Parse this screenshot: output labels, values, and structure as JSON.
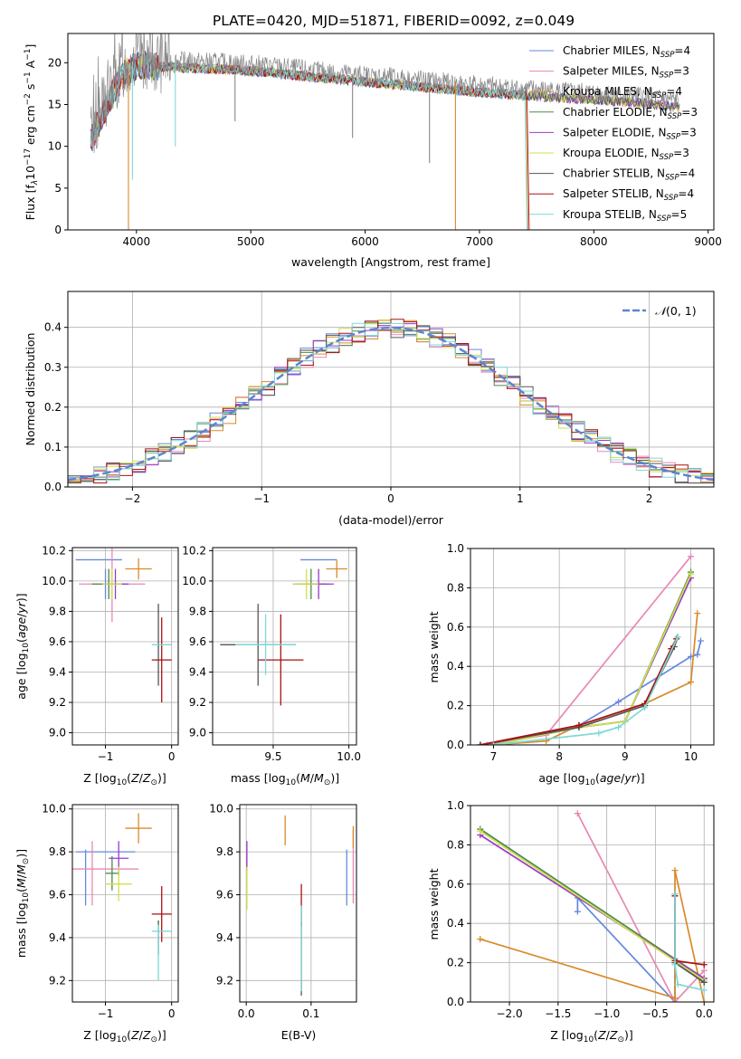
{
  "figure_title": "PLATE=0420, MJD=51871, FIBERID=0092, z=0.049",
  "colors": {
    "Chabrier MILES": "#6688dd",
    "Salpeter MILES": "#e987b6",
    "Kroupa MILES": "#d98a2a",
    "Chabrier ELODIE": "#4a8a4a",
    "Salpeter ELODIE": "#9a3bc9",
    "Kroupa ELODIE": "#cfe04a",
    "Chabrier STELIB": "#555555",
    "Salpeter STELIB": "#aa1111",
    "Kroupa STELIB": "#7fd8d8",
    "normal": "#5a86d0",
    "spectrum": "#888888",
    "orange": "#e07b26"
  },
  "chart_data": [
    {
      "type": "line",
      "id": "spectrum",
      "title": "PLATE=0420, MJD=51871, FIBERID=0092, z=0.049",
      "xlabel": "wavelength [Angstrom, rest frame]",
      "ylabel_parts": [
        "Flux [f",
        "λ",
        "10",
        "−17",
        " erg cm",
        "−2",
        " s",
        "−1",
        " A",
        "−1",
        "]"
      ],
      "xlim": [
        3400,
        9050
      ],
      "ylim": [
        0,
        23.5
      ],
      "xticks": [
        4000,
        5000,
        6000,
        7000,
        8000,
        9000
      ],
      "yticks": [
        0,
        5,
        10,
        15,
        20
      ],
      "x": [
        3600,
        3700,
        3800,
        3900,
        4000,
        4100,
        4200,
        4400,
        4600,
        4800,
        5000,
        5200,
        5400,
        5600,
        5800,
        6000,
        6200,
        6400,
        6600,
        6800,
        7000,
        7200,
        7400,
        7600,
        7800,
        8000,
        8200,
        8400,
        8600,
        8750
      ],
      "y": [
        11.5,
        14.5,
        17.5,
        19.5,
        20.5,
        20.5,
        20.3,
        20.2,
        20.1,
        20.0,
        19.8,
        19.6,
        19.3,
        19.0,
        18.8,
        18.5,
        18.3,
        18.0,
        17.8,
        17.5,
        17.3,
        17.1,
        16.9,
        16.7,
        16.5,
        16.4,
        16.2,
        16.0,
        15.7,
        15.4
      ],
      "dips": [
        {
          "x": 3930,
          "y": 0,
          "color": "Kroupa MILES"
        },
        {
          "x": 6790,
          "y": 0,
          "color": "Kroupa MILES"
        },
        {
          "x": 3965,
          "y": 6,
          "color": "Kroupa STELIB"
        },
        {
          "x": 4340,
          "y": 10,
          "color": "Kroupa STELIB"
        },
        {
          "x": 4862,
          "y": 13,
          "color": "spectrum"
        },
        {
          "x": 5890,
          "y": 11,
          "color": "spectrum"
        },
        {
          "x": 6563,
          "y": 8,
          "color": "spectrum"
        }
      ],
      "model_end": [
        {
          "name": "Kroupa STELIB",
          "x": 7400
        },
        {
          "name": "Salpeter STELIB",
          "x": 7420
        },
        {
          "name": "Kroupa MILES",
          "x": 7410
        }
      ],
      "legend": [
        {
          "name": "Chabrier MILES",
          "sub": "SSP",
          "n": "4"
        },
        {
          "name": "Salpeter MILES",
          "sub": "SSP",
          "n": "3"
        },
        {
          "name": "Kroupa MILES",
          "sub": "SSP",
          "n": "4"
        },
        {
          "name": "Chabrier ELODIE",
          "sub": "SSP",
          "n": "3"
        },
        {
          "name": "Salpeter ELODIE",
          "sub": "SSP",
          "n": "3"
        },
        {
          "name": "Kroupa ELODIE",
          "sub": "SSP",
          "n": "3"
        },
        {
          "name": "Chabrier STELIB",
          "sub": "SSP",
          "n": "4"
        },
        {
          "name": "Salpeter STELIB",
          "sub": "SSP",
          "n": "4"
        },
        {
          "name": "Kroupa STELIB",
          "sub": "SSP",
          "n": "5"
        }
      ],
      "legend_prefix": "N",
      "legend_sep": "=",
      "legend_position": "upper-right"
    },
    {
      "type": "histogram",
      "id": "residuals",
      "xlabel": "(data-model)/error",
      "ylabel": "Normed distribution",
      "xlim": [
        -2.5,
        2.5
      ],
      "ylim": [
        0,
        0.49
      ],
      "xticks": [
        -2,
        -1,
        0,
        1,
        2
      ],
      "yticks": [
        0.0,
        0.1,
        0.2,
        0.3,
        0.4
      ],
      "grid": true,
      "bin_width": 0.1,
      "legend": {
        "label_main": "𝒩",
        "label_args": "(0, 1)",
        "position": "upper-right",
        "style": "dashed"
      }
    },
    {
      "type": "errorbar",
      "id": "age_vs_z",
      "xlabel": "Z [log10(Z/Z⊙)]",
      "ylabel": "age [log10(age/yr)]",
      "xlim": [
        -1.5,
        0.1
      ],
      "ylim": [
        8.92,
        10.22
      ],
      "xticks": [
        -1,
        0
      ],
      "yticks": [
        9.0,
        9.2,
        9.4,
        9.6,
        9.8,
        10.0,
        10.2
      ],
      "grid": true,
      "points": [
        {
          "series": "Chabrier MILES",
          "x": -1.1,
          "xerr": 0.35,
          "y": 10.14,
          "yerr": 0.0
        },
        {
          "series": "Chabrier MILES",
          "x": -1.0,
          "xerr": 0.0,
          "y": 9.98,
          "yerr": 0.1
        },
        {
          "series": "Salpeter MILES",
          "x": -0.9,
          "xerr": 0.5,
          "y": 9.98,
          "yerr": 0.25
        },
        {
          "series": "Kroupa MILES",
          "x": -0.5,
          "xerr": 0.2,
          "y": 10.08,
          "yerr": 0.07
        },
        {
          "series": "Chabrier ELODIE",
          "x": -0.95,
          "xerr": 0.25,
          "y": 9.98,
          "yerr": 0.1
        },
        {
          "series": "Salpeter ELODIE",
          "x": -0.85,
          "xerr": 0.2,
          "y": 9.98,
          "yerr": 0.1
        },
        {
          "series": "Kroupa ELODIE",
          "x": -0.9,
          "xerr": 0.15,
          "y": 9.98,
          "yerr": 0.1
        },
        {
          "series": "Chabrier STELIB",
          "x": -0.2,
          "xerr": 0.0,
          "y": 9.58,
          "yerr": 0.27
        },
        {
          "series": "Salpeter STELIB",
          "x": -0.15,
          "xerr": 0.15,
          "y": 9.48,
          "yerr": 0.28
        },
        {
          "series": "Kroupa STELIB",
          "x": -0.15,
          "xerr": 0.15,
          "y": 9.58,
          "yerr": 0.0
        }
      ]
    },
    {
      "type": "errorbar",
      "id": "age_vs_mass",
      "xlabel": "mass [log10(M/M⊙)]",
      "xlim": [
        9.1,
        10.05
      ],
      "ylim": [
        8.92,
        10.22
      ],
      "xticks": [
        9.5,
        10.0
      ],
      "yticks": [
        9.0,
        9.2,
        9.4,
        9.6,
        9.8,
        10.0,
        10.2
      ],
      "grid": true,
      "points": [
        {
          "series": "Chabrier MILES",
          "x": 9.8,
          "xerr": 0.12,
          "y": 10.14,
          "yerr": 0.0
        },
        {
          "series": "Kroupa MILES",
          "x": 9.92,
          "xerr": 0.07,
          "y": 10.08,
          "yerr": 0.06
        },
        {
          "series": "Salpeter MILES",
          "x": 9.75,
          "xerr": 0.12,
          "y": 9.98,
          "yerr": 0.0
        },
        {
          "series": "Chabrier ELODIE",
          "x": 9.75,
          "xerr": 0.1,
          "y": 9.98,
          "yerr": 0.1
        },
        {
          "series": "Salpeter ELODIE",
          "x": 9.8,
          "xerr": 0.1,
          "y": 9.98,
          "yerr": 0.1
        },
        {
          "series": "Kroupa ELODIE",
          "x": 9.72,
          "xerr": 0.08,
          "y": 9.98,
          "yerr": 0.1
        },
        {
          "series": "Chabrier STELIB",
          "x": 9.4,
          "xerr": 0.25,
          "y": 9.58,
          "yerr": 0.27
        },
        {
          "series": "Salpeter STELIB",
          "x": 9.55,
          "xerr": 0.15,
          "y": 9.48,
          "yerr": 0.3
        },
        {
          "series": "Kroupa STELIB",
          "x": 9.45,
          "xerr": 0.2,
          "y": 9.58,
          "yerr": 0.2
        }
      ]
    },
    {
      "type": "line",
      "id": "mass_weight_vs_age",
      "xlabel": "age [log10(age/yr)]",
      "ylabel": "mass weight",
      "xlim": [
        6.65,
        10.35
      ],
      "ylim": [
        0,
        1.0
      ],
      "xticks": [
        7,
        8,
        9,
        10
      ],
      "yticks": [
        0.0,
        0.2,
        0.4,
        0.6,
        0.8,
        1.0
      ],
      "grid": true,
      "series": [
        {
          "name": "Chabrier MILES",
          "x": [
            6.8,
            8.3,
            8.9,
            10.0,
            10.1,
            10.15
          ],
          "y": [
            0.0,
            0.1,
            0.22,
            0.45,
            0.46,
            0.53
          ]
        },
        {
          "name": "Salpeter MILES",
          "x": [
            6.9,
            7.8,
            10.0
          ],
          "y": [
            0.0,
            0.05,
            0.96
          ]
        },
        {
          "name": "Kroupa MILES",
          "x": [
            7.0,
            7.8,
            8.3,
            9.3,
            10.0,
            10.1
          ],
          "y": [
            0.0,
            0.02,
            0.1,
            0.21,
            0.32,
            0.67
          ]
        },
        {
          "name": "Chabrier ELODIE",
          "x": [
            7.0,
            8.3,
            9.0,
            10.0
          ],
          "y": [
            0.0,
            0.09,
            0.12,
            0.88
          ]
        },
        {
          "name": "Salpeter ELODIE",
          "x": [
            7.0,
            8.3,
            9.0,
            10.0
          ],
          "y": [
            0.0,
            0.09,
            0.12,
            0.85
          ]
        },
        {
          "name": "Kroupa ELODIE",
          "x": [
            7.0,
            8.3,
            9.0,
            10.0
          ],
          "y": [
            0.0,
            0.09,
            0.12,
            0.87
          ]
        },
        {
          "name": "Chabrier STELIB",
          "x": [
            6.8,
            8.3,
            9.3,
            9.75,
            9.8
          ],
          "y": [
            0.0,
            0.09,
            0.2,
            0.5,
            0.55
          ]
        },
        {
          "name": "Salpeter STELIB",
          "x": [
            6.8,
            8.3,
            9.3,
            9.7,
            9.78
          ],
          "y": [
            0.0,
            0.1,
            0.21,
            0.49,
            0.54
          ]
        },
        {
          "name": "Kroupa STELIB",
          "x": [
            7.0,
            8.6,
            8.9,
            9.3,
            9.8
          ],
          "y": [
            0.0,
            0.06,
            0.09,
            0.19,
            0.55
          ]
        }
      ]
    },
    {
      "type": "errorbar",
      "id": "mass_vs_z",
      "xlabel": "Z [log10(Z/Z⊙)]",
      "ylabel": "mass [log10(M/M⊙)]",
      "xlim": [
        -1.5,
        0.1
      ],
      "ylim": [
        9.1,
        10.02
      ],
      "xticks": [
        -1,
        0
      ],
      "yticks": [
        9.2,
        9.4,
        9.6,
        9.8,
        10.0
      ],
      "grid": true,
      "points": [
        {
          "series": "Chabrier MILES",
          "x": -1.0,
          "xerr": 0.45,
          "y": 9.8,
          "yerr": 0.0
        },
        {
          "series": "Chabrier MILES",
          "x": -1.3,
          "xerr": 0.0,
          "y": 9.68,
          "yerr": 0.13
        },
        {
          "series": "Salpeter MILES",
          "x": -1.0,
          "xerr": 0.5,
          "y": 9.72,
          "yerr": 0.0
        },
        {
          "series": "Salpeter MILES",
          "x": -1.2,
          "xerr": 0.0,
          "y": 9.7,
          "yerr": 0.15
        },
        {
          "series": "Kroupa MILES",
          "x": -0.5,
          "xerr": 0.2,
          "y": 9.91,
          "yerr": 0.07
        },
        {
          "series": "Chabrier ELODIE",
          "x": -0.9,
          "xerr": 0.1,
          "y": 9.7,
          "yerr": 0.08
        },
        {
          "series": "Salpeter ELODIE",
          "x": -0.8,
          "xerr": 0.15,
          "y": 9.77,
          "yerr": 0.08
        },
        {
          "series": "Kroupa ELODIE",
          "x": -0.8,
          "xerr": 0.2,
          "y": 9.65,
          "yerr": 0.08
        },
        {
          "series": "Chabrier STELIB",
          "x": -0.2,
          "xerr": 0.0,
          "y": 9.4,
          "yerr": 0.08
        },
        {
          "series": "Salpeter STELIB",
          "x": -0.15,
          "xerr": 0.15,
          "y": 9.51,
          "yerr": 0.13
        },
        {
          "series": "Kroupa STELIB",
          "x": -0.15,
          "xerr": 0.15,
          "y": 9.43,
          "yerr": 0.0
        },
        {
          "series": "Kroupa STELIB",
          "x": -0.2,
          "xerr": 0.0,
          "y": 9.33,
          "yerr": 0.13
        }
      ]
    },
    {
      "type": "errorbar",
      "id": "mass_vs_ebv",
      "xlabel": "E(B-V)",
      "xlim": [
        -0.01,
        0.17
      ],
      "ylim": [
        9.1,
        10.02
      ],
      "xticks": [
        0.0,
        0.1
      ],
      "yticks": [
        9.2,
        9.4,
        9.6,
        9.8,
        10.0
      ],
      "grid": true,
      "points": [
        {
          "series": "Salpeter ELODIE",
          "x": 0.001,
          "xerr": 0.0,
          "y": 9.78,
          "yerr": 0.07
        },
        {
          "series": "Kroupa ELODIE",
          "x": 0.001,
          "xerr": 0.0,
          "y": 9.63,
          "yerr": 0.1
        },
        {
          "series": "Kroupa MILES",
          "x": 0.06,
          "xerr": 0.0,
          "y": 9.9,
          "yerr": 0.07
        },
        {
          "series": "Salpeter STELIB",
          "x": 0.085,
          "xerr": 0.0,
          "y": 9.55,
          "yerr": 0.1
        },
        {
          "series": "Chabrier STELIB",
          "x": 0.085,
          "xerr": 0.0,
          "y": 9.3,
          "yerr": 0.17
        },
        {
          "series": "Kroupa STELIB",
          "x": 0.085,
          "xerr": 0.0,
          "y": 9.35,
          "yerr": 0.2
        },
        {
          "series": "Chabrier MILES",
          "x": 0.155,
          "xerr": 0.0,
          "y": 9.68,
          "yerr": 0.13
        },
        {
          "series": "Salpeter MILES",
          "x": 0.165,
          "xerr": 0.0,
          "y": 9.73,
          "yerr": 0.17
        },
        {
          "series": "Kroupa MILES",
          "x": 0.165,
          "xerr": 0.0,
          "y": 9.87,
          "yerr": 0.05
        }
      ]
    },
    {
      "type": "line",
      "id": "mass_weight_vs_z",
      "xlabel": "Z [log10(Z/Z⊙)]",
      "ylabel": "mass weight",
      "xlim": [
        -2.4,
        0.1
      ],
      "ylim": [
        0,
        1.0
      ],
      "xticks": [
        -2.0,
        -1.5,
        -1.0,
        -0.5,
        0.0
      ],
      "yticks": [
        0.0,
        0.2,
        0.4,
        0.6,
        0.8,
        1.0
      ],
      "grid": true,
      "series": [
        {
          "name": "Chabrier MILES",
          "x": [
            -1.3,
            -1.3,
            -0.3,
            -0.3,
            0.0
          ],
          "y": [
            0.46,
            0.53,
            0.0,
            0.22,
            0.1
          ]
        },
        {
          "name": "Salpeter MILES",
          "x": [
            -1.3,
            -0.3,
            0.0
          ],
          "y": [
            0.96,
            0.0,
            0.16
          ]
        },
        {
          "name": "Kroupa MILES",
          "x": [
            -2.3,
            -0.3,
            -0.3,
            0.0
          ],
          "y": [
            0.32,
            0.02,
            0.67,
            0.0
          ]
        },
        {
          "name": "Chabrier ELODIE",
          "x": [
            -2.3,
            0.0
          ],
          "y": [
            0.88,
            0.12
          ]
        },
        {
          "name": "Salpeter ELODIE",
          "x": [
            -2.3,
            0.0
          ],
          "y": [
            0.85,
            0.12
          ]
        },
        {
          "name": "Kroupa ELODIE",
          "x": [
            -2.3,
            0.0
          ],
          "y": [
            0.87,
            0.11
          ]
        },
        {
          "name": "Chabrier STELIB",
          "x": [
            -0.3,
            -0.3,
            0.0
          ],
          "y": [
            0.55,
            0.2,
            0.1
          ]
        },
        {
          "name": "Salpeter STELIB",
          "x": [
            -0.3,
            -0.3,
            0.0
          ],
          "y": [
            0.54,
            0.21,
            0.19
          ]
        },
        {
          "name": "Kroupa STELIB",
          "x": [
            -0.3,
            -0.3,
            -0.27,
            0.0
          ],
          "y": [
            0.55,
            0.19,
            0.09,
            0.06
          ]
        }
      ]
    }
  ]
}
